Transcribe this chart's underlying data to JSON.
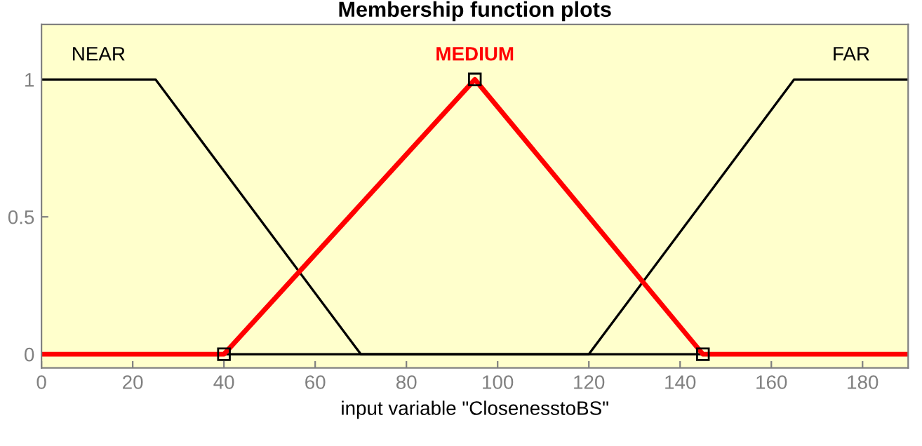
{
  "chart_data": {
    "type": "line",
    "title": "Membership function plots",
    "xlabel": "input variable \"ClosenesstoBS\"",
    "xlim": [
      0,
      190
    ],
    "xticks": [
      0,
      20,
      40,
      60,
      80,
      100,
      120,
      140,
      160,
      180
    ],
    "ylim": [
      -0.05,
      1.2
    ],
    "yticks": [
      0,
      0.5,
      1
    ],
    "grid": false,
    "legend": false,
    "series": [
      {
        "name": "NEAR",
        "color": "#000000",
        "x": [
          0,
          25,
          70,
          190
        ],
        "values": [
          1,
          1,
          0,
          0
        ],
        "marker": "none"
      },
      {
        "name": "FAR",
        "color": "#000000",
        "x": [
          0,
          120,
          165,
          190
        ],
        "values": [
          0,
          0,
          1,
          1
        ],
        "marker": "none"
      },
      {
        "name": "MEDIUM",
        "color": "#ff0000",
        "x": [
          0,
          40,
          95,
          145,
          190
        ],
        "values": [
          0,
          0,
          1,
          0,
          0
        ],
        "marker": "square"
      }
    ]
  }
}
